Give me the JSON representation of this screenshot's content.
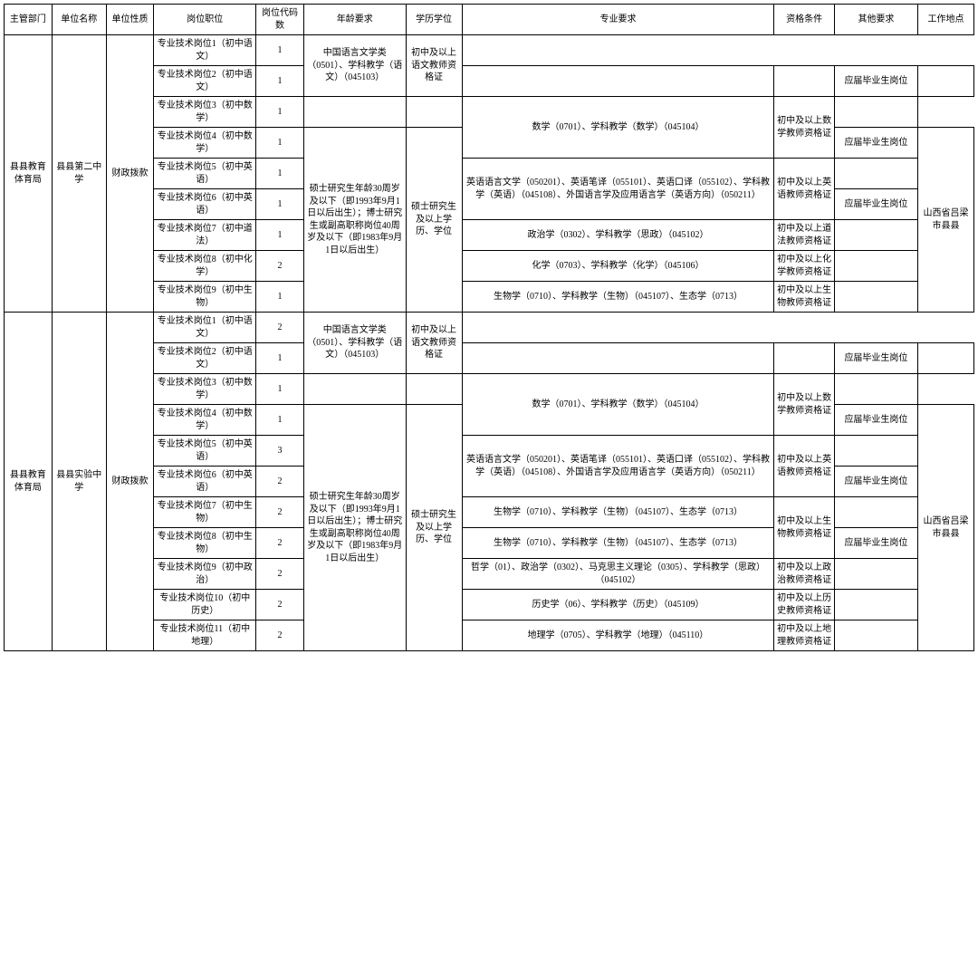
{
  "headers": [
    "主管部门",
    "单位名称",
    "单位性质",
    "岗位职位",
    "岗位代码数",
    "年龄要求",
    "学历学位",
    "专业要求",
    "资格条件",
    "其他要求",
    "工作地点"
  ],
  "rows": [
    {
      "dept": "县县教育体育局",
      "dept_rs": 9,
      "unit": "县县第二中学",
      "unit_rs": 9,
      "nat": "财政拨款",
      "nat_rs": 9,
      "pos": "专业技术岗位1（初中语文）",
      "cnt": "1",
      "age": "",
      "age_rs": 0,
      "edu": "",
      "edu_rs": 0,
      "major": "中国语言文学类（0501）、学科教学（语文）（045103）",
      "major_rs": 2,
      "qual": "初中及以上语文教师资格证",
      "qual_rs": 2,
      "other": "",
      "other_rs": 0,
      "loc": "",
      "loc_rs": 0
    },
    {
      "pos": "专业技术岗位2（初中语文）",
      "cnt": "1",
      "age": "",
      "edu": "",
      "qual": "",
      "other": "应届毕业生岗位",
      "other_rs": 1
    },
    {
      "pos": "专业技术岗位3（初中数学）",
      "cnt": "1",
      "age": "",
      "edu": "",
      "major": "数学（0701）、学科教学（数学）（045104）",
      "major_rs": 2,
      "qual": "初中及以上数学教师资格证",
      "qual_rs": 2,
      "other": "",
      "other_rs": 0
    },
    {
      "pos": "专业技术岗位4（初中数学）",
      "cnt": "1",
      "age": "硕士研究生年龄30周岁及以下（即1993年9月1日以后出生）；博士研究生或副高职称岗位40周岁及以下（即1983年9月1日以后出生）",
      "age_rs": 6,
      "edu": "硕士研究生及以上学历、学位",
      "edu_rs": 6,
      "qual": "",
      "other": "应届毕业生岗位",
      "other_rs": 1,
      "loc": "山西省吕梁市县县",
      "loc_rs": 6
    },
    {
      "pos": "专业技术岗位5（初中英语）",
      "cnt": "1",
      "major": "英语语言文学（050201）、英语笔译（055101）、英语口译（055102）、学科教学（英语）（045108）、外国语言学及应用语言学（英语方向）（050211）",
      "major_rs": 2,
      "qual": "初中及以上英语教师资格证",
      "qual_rs": 2,
      "other": "",
      "other_rs": 0
    },
    {
      "pos": "专业技术岗位6（初中英语）",
      "cnt": "1",
      "qual": "",
      "other": "应届毕业生岗位",
      "other_rs": 1
    },
    {
      "pos": "专业技术岗位7（初中道法）",
      "cnt": "1",
      "major": "政治学（0302）、学科教学（思政）（045102）",
      "major_rs": 1,
      "qual": "初中及以上道法教师资格证",
      "qual_rs": 1,
      "other": "",
      "other_rs": 1
    },
    {
      "pos": "专业技术岗位8（初中化学）",
      "cnt": "2",
      "major": "化学（0703）、学科教学（化学）（045106）",
      "major_rs": 1,
      "qual": "初中及以上化学教师资格证",
      "qual_rs": 1,
      "other": "",
      "other_rs": 1
    },
    {
      "pos": "专业技术岗位9（初中生物）",
      "cnt": "1",
      "major": "生物学（0710）、学科教学（生物）（045107）、生态学（0713）",
      "major_rs": 1,
      "qual": "初中及以上生物教师资格证",
      "qual_rs": 1,
      "other": "",
      "other_rs": 1
    },
    {
      "dept": "县县教育体育局",
      "dept_rs": 11,
      "unit": "县县实验中学",
      "unit_rs": 11,
      "nat": "财政拨款",
      "nat_rs": 11,
      "pos": "专业技术岗位1（初中语文）",
      "cnt": "2",
      "age": "",
      "age_rs": 0,
      "edu": "",
      "edu_rs": 0,
      "major": "中国语言文学类（0501）、学科教学（语文）（045103）",
      "major_rs": 2,
      "qual": "初中及以上语文教师资格证",
      "qual_rs": 2,
      "other": "",
      "other_rs": 0,
      "loc": "",
      "loc_rs": 0
    },
    {
      "pos": "专业技术岗位2（初中语文）",
      "cnt": "1",
      "age": "",
      "edu": "",
      "qual": "",
      "other": "应届毕业生岗位",
      "other_rs": 1
    },
    {
      "pos": "专业技术岗位3（初中数学）",
      "cnt": "1",
      "age": "",
      "edu": "",
      "major": "数学（0701）、学科教学（数学）（045104）",
      "major_rs": 2,
      "qual": "初中及以上数学教师资格证",
      "qual_rs": 2,
      "other": "",
      "other_rs": 0
    },
    {
      "pos": "专业技术岗位4（初中数学）",
      "cnt": "1",
      "age": "硕士研究生年龄30周岁及以下（即1993年9月1日以后出生）；博士研究生或副高职称岗位40周岁及以下（即1983年9月1日以后出生）",
      "age_rs": 8,
      "edu": "硕士研究生及以上学历、学位",
      "edu_rs": 8,
      "qual": "",
      "other": "应届毕业生岗位",
      "other_rs": 1,
      "loc": "山西省吕梁市县县",
      "loc_rs": 8
    },
    {
      "pos": "专业技术岗位5（初中英语）",
      "cnt": "3",
      "major": "英语语言文学（050201）、英语笔译（055101）、英语口译（055102）、学科教学（英语）（045108）、外国语言学及应用语言学（英语方向）（050211）",
      "major_rs": 2,
      "qual": "初中及以上英语教师资格证",
      "qual_rs": 2,
      "other": "",
      "other_rs": 0
    },
    {
      "pos": "专业技术岗位6（初中英语）",
      "cnt": "2",
      "qual": "",
      "other": "应届毕业生岗位",
      "other_rs": 1
    },
    {
      "pos": "专业技术岗位7（初中生物）",
      "cnt": "2",
      "major": "生物学（0710）、学科教学（生物）（045107）、生态学（0713）",
      "major_rs": 1,
      "qual": "初中及以上生物教师资格证",
      "qual_rs": 2,
      "other": "",
      "other_rs": 0
    },
    {
      "pos": "专业技术岗位8（初中生物）",
      "cnt": "2",
      "major": "生物学（0710）、学科教学（生物）（045107）、生态学（0713）",
      "major_rs": 1,
      "qual": "",
      "other": "应届毕业生岗位",
      "other_rs": 1
    },
    {
      "pos": "专业技术岗位9（初中政治）",
      "cnt": "2",
      "major": "哲学（01）、政治学（0302）、马克思主义理论（0305）、学科教学（思政）（045102）",
      "major_rs": 1,
      "qual": "初中及以上政治教师资格证",
      "qual_rs": 1,
      "other": "",
      "other_rs": 1
    },
    {
      "pos": "专业技术岗位10（初中历史）",
      "cnt": "2",
      "major": "历史学（06）、学科教学（历史）（045109）",
      "major_rs": 1,
      "qual": "初中及以上历史教师资格证",
      "qual_rs": 1,
      "other": "",
      "other_rs": 1
    },
    {
      "pos": "专业技术岗位11（初中地理）",
      "cnt": "2",
      "major": "地理学（0705）、学科教学（地理）（045110）",
      "major_rs": 1,
      "qual": "初中及以上地理教师资格证",
      "qual_rs": 1,
      "other": "",
      "other_rs": 1
    }
  ]
}
